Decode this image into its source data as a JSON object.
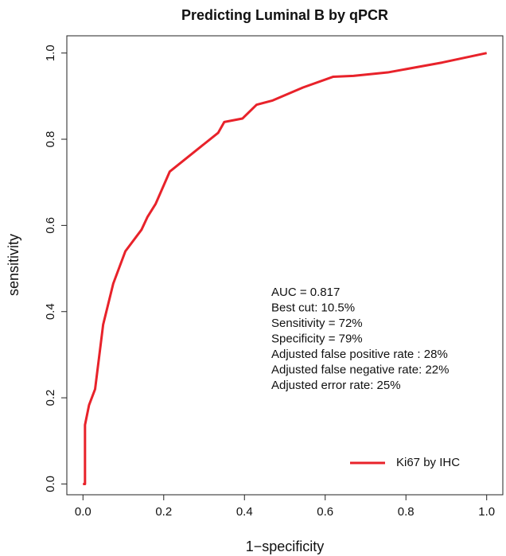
{
  "chart_data": {
    "type": "line",
    "title": "Predicting Luminal B by qPCR",
    "x_label": "1−specificity",
    "y_label": "sensitivity",
    "series": [
      {
        "name": "Ki67 by IHC",
        "color": "#e8222a",
        "x": [
          0,
          0.005,
          0.005,
          0.015,
          0.03,
          0.05,
          0.075,
          0.105,
          0.145,
          0.16,
          0.18,
          0.215,
          0.335,
          0.35,
          0.395,
          0.43,
          0.47,
          0.545,
          0.62,
          0.67,
          0.755,
          0.89,
          1
        ],
        "values": [
          0,
          0,
          0.137,
          0.183,
          0.22,
          0.37,
          0.465,
          0.54,
          0.59,
          0.62,
          0.65,
          0.725,
          0.815,
          0.84,
          0.848,
          0.88,
          0.89,
          0.92,
          0.945,
          0.947,
          0.955,
          0.978,
          1
        ]
      }
    ],
    "annotations": [
      "AUC = 0.817",
      "Best cut: 10.5%",
      "Sensitivity = 72%",
      "Specificity = 79%",
      "Adjusted false positive rate : 28%",
      "Adjusted false negative rate: 22%",
      "Adjusted error rate: 25%"
    ],
    "xlim": [
      -0.04,
      1.04
    ],
    "ylim": [
      -0.025,
      1.04
    ],
    "xticks": [
      {
        "value": 0,
        "label": "0.0"
      },
      0.2,
      0.4,
      0.6,
      0.8,
      {
        "value": 1,
        "label": "1.0"
      }
    ],
    "yticks": [
      {
        "value": 0,
        "label": "0.0"
      },
      0.2,
      0.4,
      0.6,
      0.8,
      {
        "value": 1,
        "label": "1.0"
      }
    ],
    "legend": "bottom-right"
  }
}
